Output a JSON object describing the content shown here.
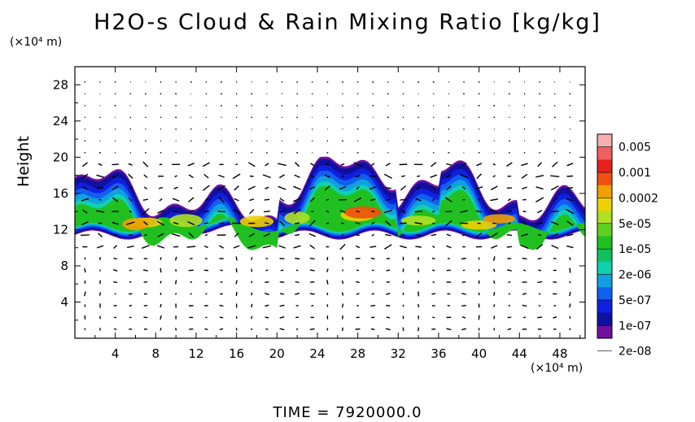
{
  "chart_data": {
    "type": "heatmap",
    "title": "H2O-s Cloud & Rain Mixing Ratio [kg/kg]",
    "ylabel": "Height",
    "y_unit": "(×10⁴ m)",
    "x_unit": "(×10⁴ m)",
    "xlim": [
      0,
      50.5
    ],
    "ylim": [
      0,
      30
    ],
    "x_ticks": [
      4,
      8,
      12,
      16,
      20,
      24,
      28,
      32,
      36,
      40,
      44,
      48
    ],
    "y_ticks": [
      4,
      8,
      12,
      16,
      20,
      24,
      28
    ],
    "colorbar": {
      "labels": [
        "0.005",
        "0.001",
        "0.0002",
        "5e-05",
        "1e-05",
        "2e-06",
        "5e-07",
        "1e-07",
        "2e-08"
      ],
      "colors": [
        "#f7b0b0",
        "#f06060",
        "#e82020",
        "#f05010",
        "#f0a000",
        "#f0d000",
        "#b0e020",
        "#60d020",
        "#20c020",
        "#10c060",
        "#10d0b0",
        "#10a0e0",
        "#1060f0",
        "#1020e0",
        "#1010a0",
        "#7010a0"
      ]
    },
    "cloud_band": {
      "base_height": 11.5,
      "top_height_max": 19.8,
      "x_extent": [
        0,
        50.5
      ]
    },
    "grid": false,
    "wind_vectors": true
  },
  "footer": {
    "time_label": "TIME = 7920000.0"
  }
}
